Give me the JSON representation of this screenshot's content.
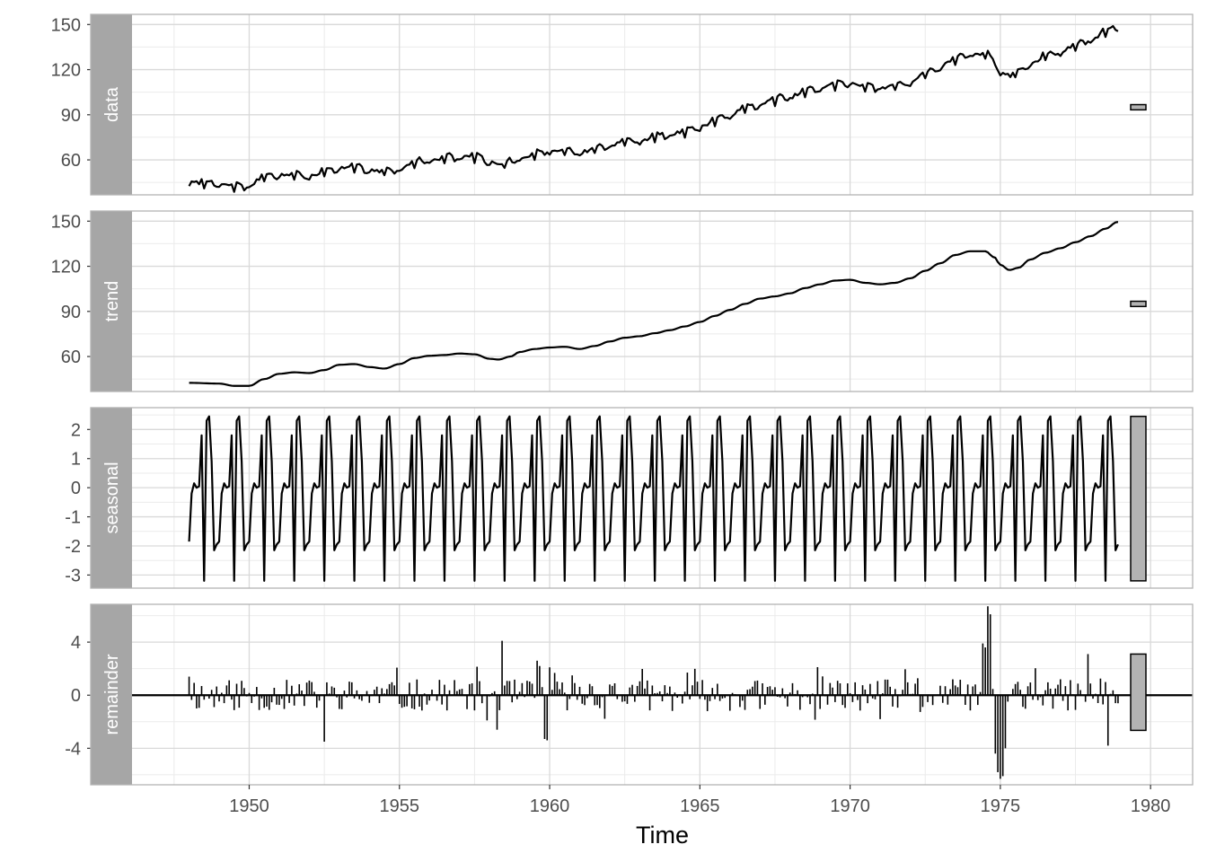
{
  "chart_data": {
    "type": "line",
    "xlabel": "Time",
    "xlim": [
      1946.1,
      1981.4
    ],
    "x_ticks": [
      1950,
      1955,
      1960,
      1965,
      1970,
      1975,
      1980
    ],
    "x_tick_labels": [
      "1950",
      "1955",
      "1960",
      "1965",
      "1970",
      "1975",
      "1980"
    ],
    "grid": true,
    "legend": "none",
    "range_bar_scale_height": 3.15,
    "panels": [
      {
        "strip": "data",
        "type": "line",
        "ylim": [
          36.75,
          156.75
        ],
        "y_ticks": [
          60,
          90,
          120,
          150
        ],
        "y_tick_labels": [
          "60",
          "90",
          "120",
          "150"
        ],
        "series": {
          "start": 1948.0,
          "end": 1978.9,
          "anchors": [
            [
              1948.0,
              45
            ],
            [
              1949.0,
              44
            ],
            [
              1949.5,
              42
            ],
            [
              1950.0,
              43
            ],
            [
              1950.5,
              49
            ],
            [
              1951.0,
              50
            ],
            [
              1951.5,
              50
            ],
            [
              1952.0,
              49
            ],
            [
              1952.5,
              52
            ],
            [
              1953.0,
              55
            ],
            [
              1953.5,
              55
            ],
            [
              1954.0,
              53
            ],
            [
              1954.5,
              52
            ],
            [
              1955.0,
              54
            ],
            [
              1955.5,
              58
            ],
            [
              1956.0,
              60
            ],
            [
              1956.5,
              61
            ],
            [
              1957.0,
              62
            ],
            [
              1957.5,
              62
            ],
            [
              1958.0,
              59
            ],
            [
              1958.3,
              56
            ],
            [
              1958.7,
              58
            ],
            [
              1959.0,
              61
            ],
            [
              1959.5,
              64
            ],
            [
              1960.0,
              66
            ],
            [
              1960.5,
              66
            ],
            [
              1961.0,
              65
            ],
            [
              1961.5,
              67
            ],
            [
              1962.0,
              70
            ],
            [
              1962.5,
              72
            ],
            [
              1963.0,
              73
            ],
            [
              1963.5,
              75
            ],
            [
              1964.0,
              77
            ],
            [
              1964.5,
              79
            ],
            [
              1965.0,
              82
            ],
            [
              1965.5,
              86
            ],
            [
              1966.0,
              90
            ],
            [
              1966.5,
              94
            ],
            [
              1967.0,
              97
            ],
            [
              1967.5,
              100
            ],
            [
              1968.0,
              102
            ],
            [
              1968.5,
              105
            ],
            [
              1969.0,
              108
            ],
            [
              1969.5,
              110
            ],
            [
              1970.0,
              111
            ],
            [
              1970.5,
              109
            ],
            [
              1971.0,
              108
            ],
            [
              1971.5,
              109
            ],
            [
              1972.0,
              112
            ],
            [
              1972.5,
              117
            ],
            [
              1973.0,
              122
            ],
            [
              1973.5,
              127
            ],
            [
              1974.0,
              130
            ],
            [
              1974.5,
              130
            ],
            [
              1974.8,
              126
            ],
            [
              1975.0,
              119
            ],
            [
              1975.3,
              116
            ],
            [
              1975.6,
              118
            ],
            [
              1976.0,
              124
            ],
            [
              1976.5,
              129
            ],
            [
              1977.0,
              132
            ],
            [
              1977.5,
              136
            ],
            [
              1978.0,
              140
            ],
            [
              1978.5,
              145
            ],
            [
              1978.9,
              148
            ]
          ],
          "seasonal_amplitude": 1.0,
          "noise_seed": 7
        }
      },
      {
        "strip": "trend",
        "type": "line",
        "ylim": [
          36.75,
          156.75
        ],
        "y_ticks": [
          60,
          90,
          120,
          150
        ],
        "y_tick_labels": [
          "60",
          "90",
          "120",
          "150"
        ],
        "series": {
          "start": 1948.0,
          "end": 1978.9,
          "anchors": [
            [
              1948.0,
              42.5
            ],
            [
              1949.0,
              42
            ],
            [
              1949.5,
              40.5
            ],
            [
              1950.0,
              40.5
            ],
            [
              1950.5,
              45
            ],
            [
              1951.0,
              48.5
            ],
            [
              1951.5,
              49.5
            ],
            [
              1952.0,
              49
            ],
            [
              1952.5,
              51
            ],
            [
              1953.0,
              54.5
            ],
            [
              1953.5,
              55
            ],
            [
              1954.0,
              53
            ],
            [
              1954.5,
              52
            ],
            [
              1955.0,
              55
            ],
            [
              1955.5,
              59
            ],
            [
              1956.0,
              60.5
            ],
            [
              1956.5,
              61
            ],
            [
              1957.0,
              62
            ],
            [
              1957.5,
              61.5
            ],
            [
              1958.0,
              58.5
            ],
            [
              1958.3,
              58
            ],
            [
              1958.7,
              60
            ],
            [
              1959.0,
              63
            ],
            [
              1959.5,
              65
            ],
            [
              1960.0,
              66
            ],
            [
              1960.5,
              66.5
            ],
            [
              1961.0,
              65
            ],
            [
              1961.5,
              67
            ],
            [
              1962.0,
              70
            ],
            [
              1962.5,
              72.5
            ],
            [
              1963.0,
              73.5
            ],
            [
              1963.5,
              75.5
            ],
            [
              1964.0,
              77.5
            ],
            [
              1964.5,
              80
            ],
            [
              1965.0,
              83
            ],
            [
              1965.5,
              87
            ],
            [
              1966.0,
              91
            ],
            [
              1966.5,
              95
            ],
            [
              1967.0,
              98.5
            ],
            [
              1967.5,
              100
            ],
            [
              1968.0,
              102
            ],
            [
              1968.5,
              105.5
            ],
            [
              1969.0,
              108
            ],
            [
              1969.5,
              110.5
            ],
            [
              1970.0,
              111
            ],
            [
              1970.5,
              109
            ],
            [
              1971.0,
              108
            ],
            [
              1971.5,
              109
            ],
            [
              1972.0,
              112
            ],
            [
              1972.5,
              117
            ],
            [
              1973.0,
              122
            ],
            [
              1973.5,
              127.5
            ],
            [
              1974.0,
              130
            ],
            [
              1974.5,
              130
            ],
            [
              1974.8,
              126
            ],
            [
              1975.0,
              121
            ],
            [
              1975.3,
              117.5
            ],
            [
              1975.6,
              119
            ],
            [
              1976.0,
              124.5
            ],
            [
              1976.5,
              129
            ],
            [
              1977.0,
              132
            ],
            [
              1977.5,
              136
            ],
            [
              1978.0,
              140
            ],
            [
              1978.5,
              145
            ],
            [
              1978.9,
              149.5
            ]
          ]
        }
      },
      {
        "strip": "seasonal",
        "type": "line",
        "ylim": [
          -3.45,
          2.75
        ],
        "y_ticks": [
          -3,
          -2,
          -1,
          0,
          1,
          2
        ],
        "y_tick_labels": [
          "-3",
          "-2",
          "-1",
          "0",
          "1",
          "2"
        ],
        "series": {
          "start": 1948.0,
          "end": 1978.9,
          "monthly_pattern": [
            -1.85,
            -0.2,
            0.15,
            0.0,
            0.05,
            1.8,
            -3.2,
            2.3,
            2.45,
            0.9,
            -2.15,
            -1.95
          ]
        }
      },
      {
        "strip": "remainder",
        "type": "bar",
        "ylim": [
          -6.75,
          6.85
        ],
        "baseline": 0,
        "y_ticks": [
          -4,
          0,
          4
        ],
        "y_tick_labels": [
          "-4",
          "0",
          "4"
        ],
        "series": {
          "start": 1948.0,
          "end": 1978.9,
          "spikes": [
            [
              1958.4,
              4.1
            ],
            [
              1958.25,
              -2.6
            ],
            [
              1959.8,
              -3.3
            ],
            [
              1959.9,
              -3.4
            ],
            [
              1959.6,
              2.6
            ],
            [
              1959.7,
              2.2
            ],
            [
              1960.0,
              2.1
            ],
            [
              1974.6,
              6.7
            ],
            [
              1974.7,
              6.1
            ],
            [
              1974.5,
              3.6
            ],
            [
              1974.45,
              3.9
            ],
            [
              1974.9,
              -5.8
            ],
            [
              1975.0,
              -6.3
            ],
            [
              1975.1,
              -6.1
            ],
            [
              1975.2,
              -4.0
            ],
            [
              1974.8,
              -4.4
            ],
            [
              1979.0,
              -3.1
            ],
            [
              1977.9,
              3.1
            ],
            [
              1978.6,
              -3.8
            ],
            [
              1952.5,
              -3.5
            ],
            [
              1957.9,
              -1.9
            ],
            [
              1948.0,
              1.4
            ]
          ],
          "noise_amplitude": 1.0,
          "noise_seed": 11
        }
      }
    ]
  }
}
